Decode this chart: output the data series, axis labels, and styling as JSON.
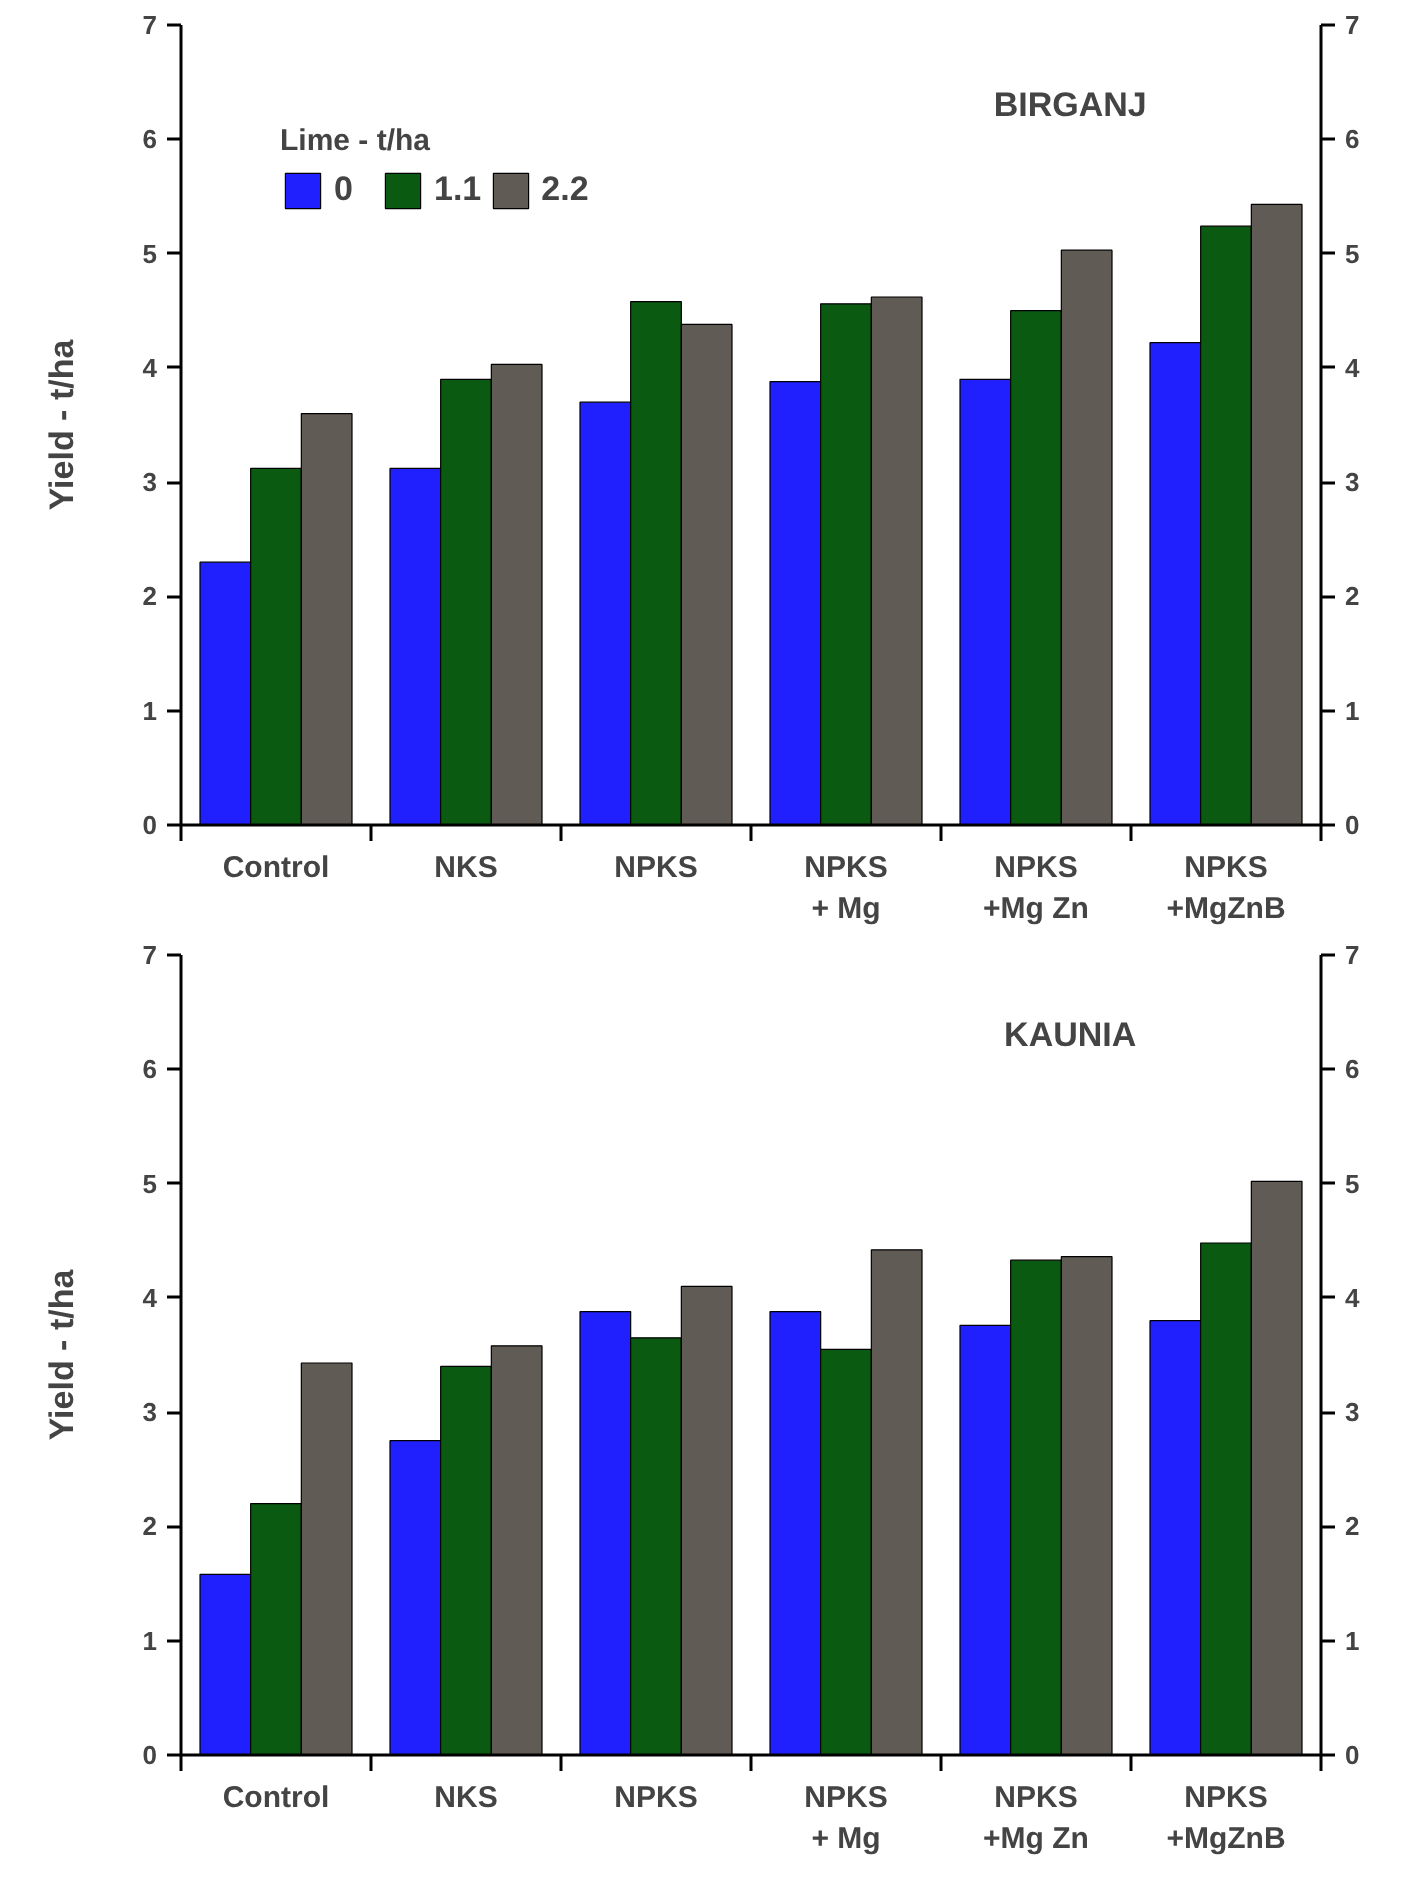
{
  "chart_data": [
    {
      "type": "bar",
      "title": "BIRGANJ",
      "ylabel": "Yield - t/ha",
      "legend_title": "Lime - t/ha",
      "legend": "top left",
      "categories": [
        "Control",
        "NKS",
        "NPKS",
        "NPKS\n+ Mg",
        "NPKS\n+Mg Zn",
        "NPKS\n+MgZnB"
      ],
      "series": [
        {
          "name": "0",
          "color": "#2020ff",
          "values": [
            2.3,
            3.12,
            3.7,
            3.88,
            3.9,
            4.22
          ]
        },
        {
          "name": "1.1",
          "color": "#0b5a12",
          "values": [
            3.12,
            3.9,
            4.58,
            4.56,
            4.5,
            5.24
          ]
        },
        {
          "name": "2.2",
          "color": "#615b56",
          "values": [
            3.6,
            4.03,
            4.38,
            4.62,
            5.03,
            5.43
          ]
        }
      ],
      "ylim": [
        0,
        7
      ],
      "yticks": [
        0,
        1,
        2,
        3,
        4,
        5,
        6,
        7
      ],
      "y2lim": [
        0,
        7
      ],
      "y2ticks": [
        0,
        1,
        2,
        3,
        4,
        5,
        6,
        7
      ],
      "grid": false
    },
    {
      "type": "bar",
      "title": "KAUNIA",
      "ylabel": "Yield - t/ha",
      "categories": [
        "Control",
        "NKS",
        "NPKS",
        "NPKS\n+ Mg",
        "NPKS\n+Mg Zn",
        "NPKS\n+MgZnB"
      ],
      "series": [
        {
          "color": "#2020ff",
          "values": [
            1.58,
            2.75,
            3.88,
            3.88,
            3.76,
            3.8
          ]
        },
        {
          "color": "#0b5a12",
          "values": [
            2.2,
            3.4,
            3.65,
            3.55,
            4.33,
            4.48
          ]
        },
        {
          "color": "#615b56",
          "values": [
            3.43,
            3.58,
            4.1,
            4.42,
            4.36,
            5.02
          ]
        }
      ],
      "ylim": [
        0,
        7
      ],
      "yticks": [
        0,
        1,
        2,
        3,
        4,
        5,
        6,
        7
      ],
      "y2lim": [
        0,
        7
      ],
      "y2ticks": [
        0,
        1,
        2,
        3,
        4,
        5,
        6,
        7
      ],
      "grid": false
    }
  ]
}
